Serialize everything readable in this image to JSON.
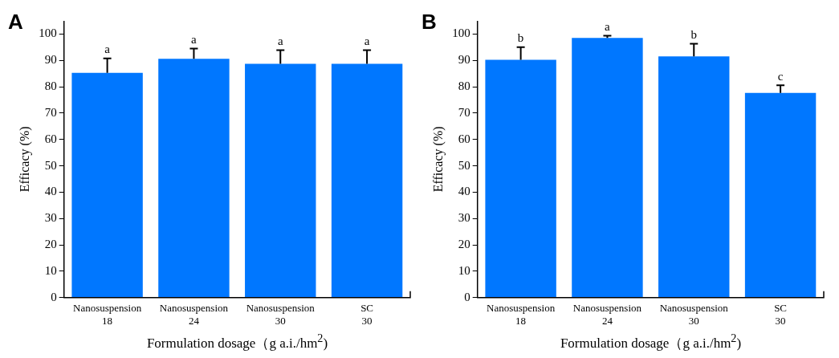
{
  "chart_data": [
    {
      "type": "bar",
      "title": "A",
      "xlabel": "Formulation dosage（g a.i./hm$^{2}$)",
      "ylabel": "Efficacy (%)",
      "categories": [
        "Nanosuspension\n18",
        "Nanosuspension\n24",
        "Nanosuspension\n30",
        "SC\n30"
      ],
      "values": [
        85.3,
        90.6,
        88.7,
        88.7
      ],
      "errors": [
        5.5,
        3.9,
        5.2,
        5.2
      ],
      "color": "#0077ff",
      "ylim": [
        0,
        105
      ],
      "yticks": [
        0,
        10,
        20,
        30,
        40,
        50,
        60,
        70,
        80,
        90,
        100
      ],
      "grid": false,
      "legend": false,
      "annotations": [
        {
          "text": "a",
          "x": "Nanosuspension\n18",
          "y": 90.8
        },
        {
          "text": "a",
          "x": "Nanosuspension\n24",
          "y": 94.5
        },
        {
          "text": "a",
          "x": "Nanosuspension\n30",
          "y": 93.9
        },
        {
          "text": "a",
          "x": "SC\n30",
          "y": 93.9
        }
      ]
    },
    {
      "type": "bar",
      "title": "B",
      "xlabel": "Formulation dosage（g a.i./hm$^{2}$)",
      "ylabel": "Efficacy (%)",
      "categories": [
        "Nanosuspension\n18",
        "Nanosuspension\n24",
        "Nanosuspension\n30",
        "SC\n30"
      ],
      "values": [
        90.2,
        98.5,
        91.5,
        77.7
      ],
      "errors": [
        4.8,
        0.9,
        4.8,
        2.9
      ],
      "color": "#0077ff",
      "ylim": [
        0,
        105
      ],
      "yticks": [
        0,
        10,
        20,
        30,
        40,
        50,
        60,
        70,
        80,
        90,
        100
      ],
      "grid": false,
      "legend": false,
      "annotations": [
        {
          "text": "b",
          "x": "Nanosuspension\n18",
          "y": 95.0
        },
        {
          "text": "a",
          "x": "Nanosuspension\n24",
          "y": 99.4
        },
        {
          "text": "b",
          "x": "Nanosuspension\n30",
          "y": 96.3
        },
        {
          "text": "c",
          "x": "SC\n30",
          "y": 80.6
        }
      ]
    }
  ]
}
